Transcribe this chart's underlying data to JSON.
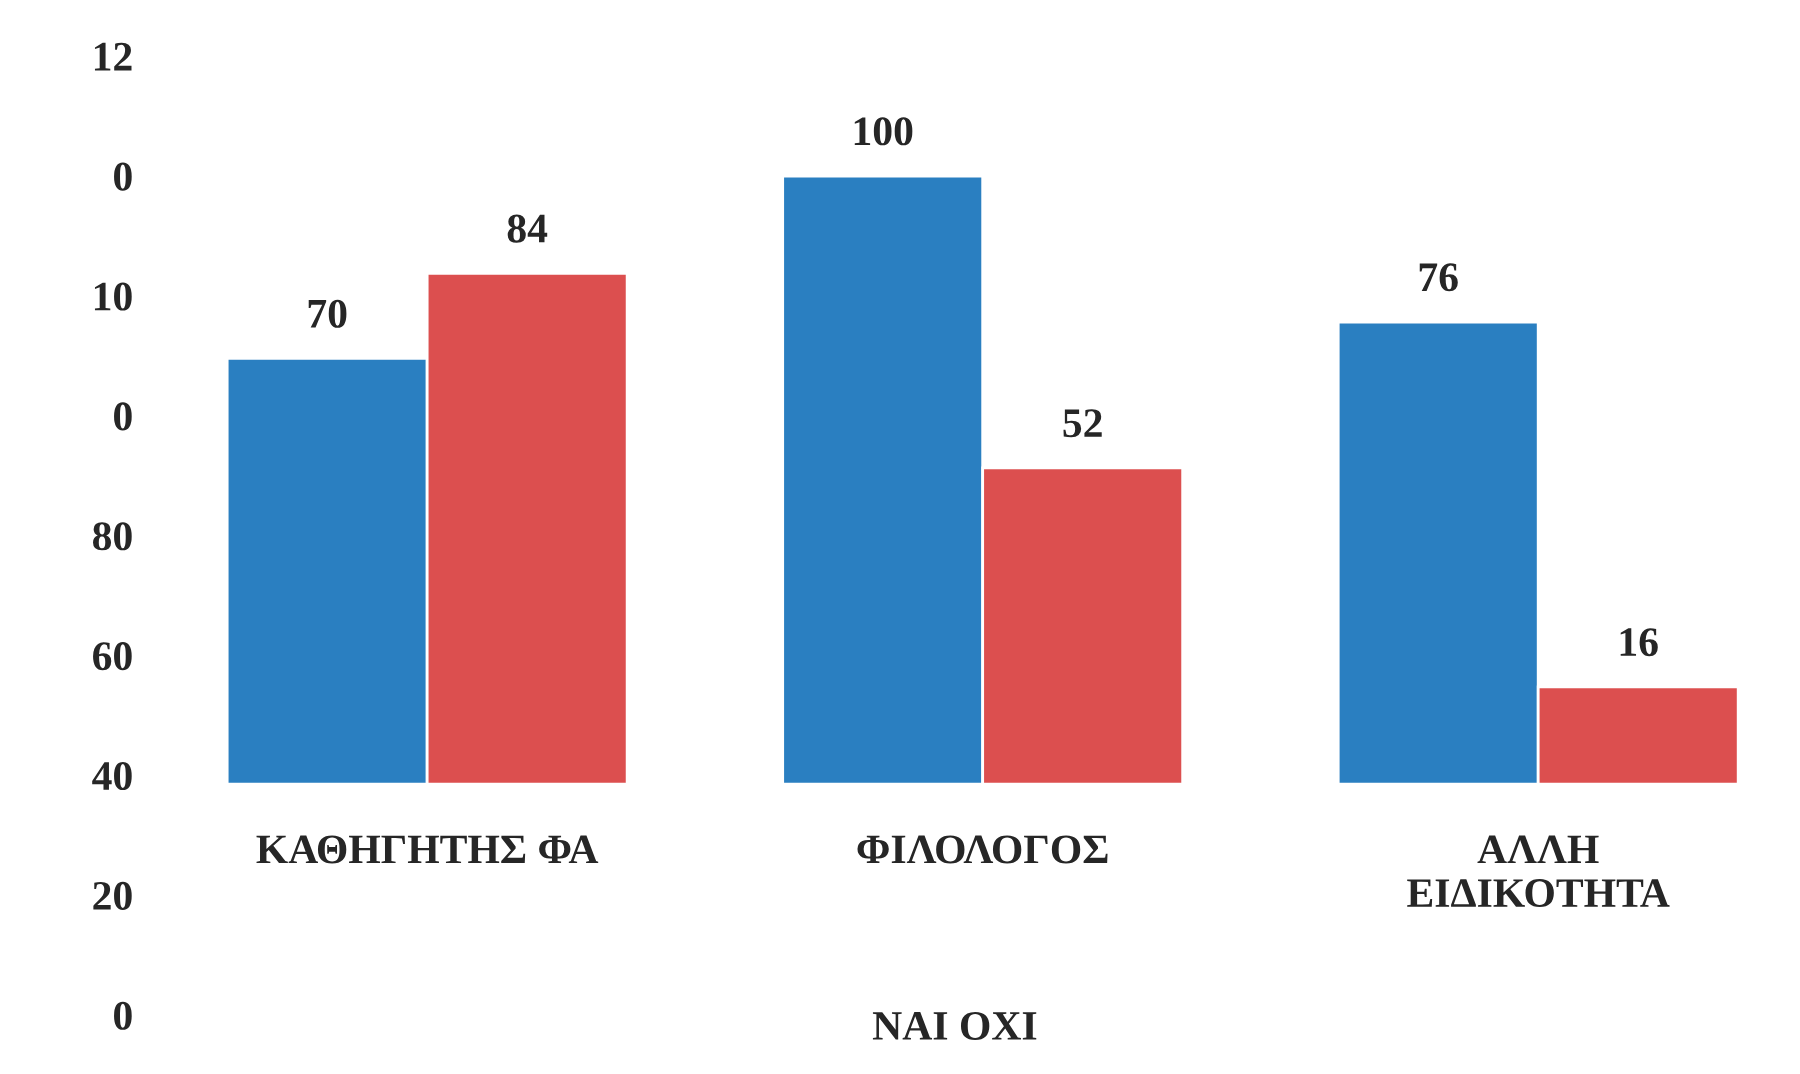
{
  "chart_data": {
    "type": "bar",
    "xlabel": "ΝΑΙ ΟΧΙ",
    "categories": [
      "ΚΑΘΗΓΗΤΗΣ ΦΑ",
      "ΦΙΛΟΛΟΓΟΣ",
      "ΑΛΛΗ\nΕΙΔΙΚΟΤΗΤΑ"
    ],
    "series": [
      {
        "color": "#2a7fc1",
        "values": [
          70,
          100,
          76
        ]
      },
      {
        "color": "#dc4f4f",
        "values": [
          84,
          52,
          16
        ]
      }
    ],
    "data_labels": true,
    "annotations": [
      "12",
      "0",
      "10",
      "0",
      "80",
      "60",
      "40",
      "20",
      "0"
    ],
    "grid": false
  }
}
